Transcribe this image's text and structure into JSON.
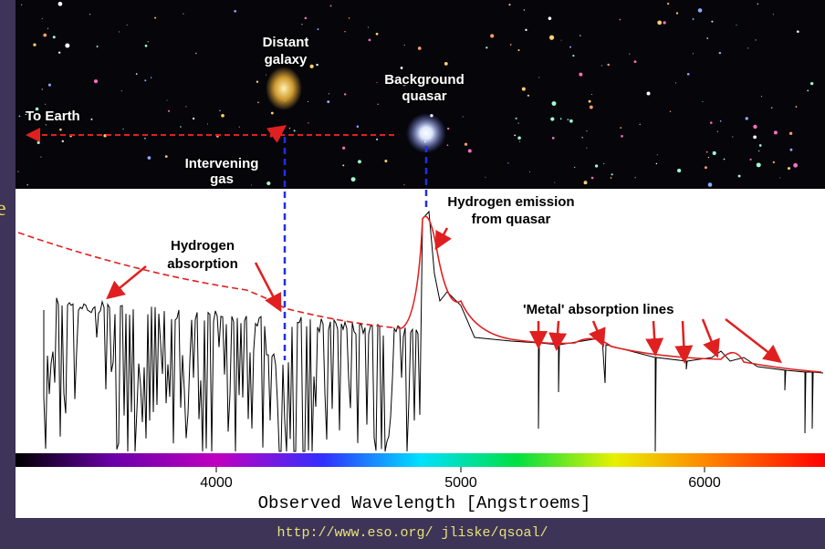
{
  "slide_fragment": "e",
  "figure": {
    "labels": {
      "distant_galaxy": [
        "Distant",
        "galaxy"
      ],
      "background_quasar": [
        "Background",
        "quasar"
      ],
      "to_earth": "To Earth",
      "intervening_gas": [
        "Intervening",
        "gas"
      ],
      "hydrogen_emission": [
        "Hydrogen emission",
        "from quasar"
      ],
      "hydrogen_absorption": [
        "Hydrogen",
        "absorption"
      ],
      "metal_lines": "'Metal' absorption lines"
    },
    "axis": {
      "ticks": [
        "4000",
        "5000",
        "6000"
      ],
      "label": "Observed Wavelength [Angstroems]"
    }
  },
  "footer": {
    "url": "http://www.eso.org/ jliske/qsoal/"
  }
}
